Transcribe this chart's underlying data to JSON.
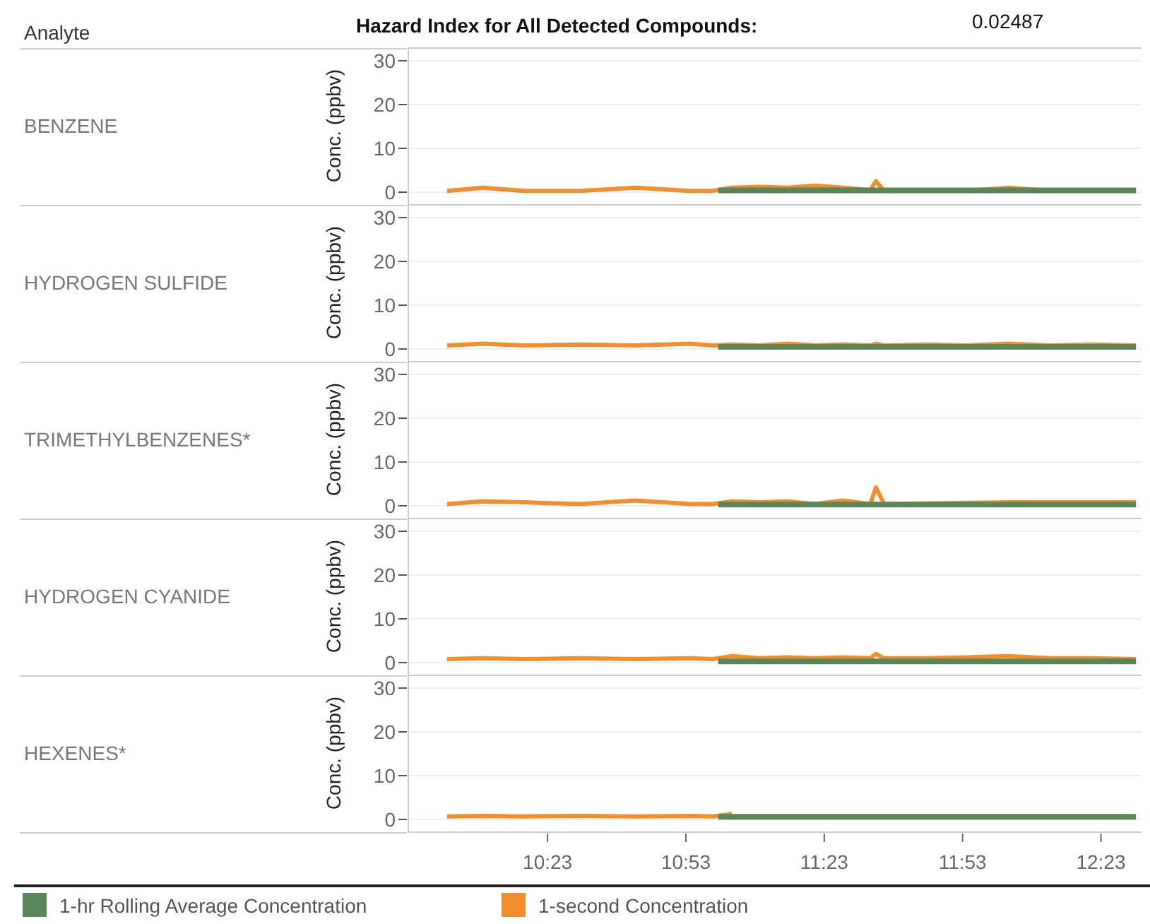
{
  "chart_data": [
    {
      "type": "line",
      "ylabel": "Conc. (ppbv)",
      "annotations": [
        "Analyte",
        "Hazard Index for All Detected Compounds:",
        "0.02487",
        "BENZENE"
      ],
      "xlim": [
        9.88,
        12.53
      ],
      "ylim": [
        -2.9,
        32.9
      ],
      "yticks": [
        0,
        10,
        20,
        30
      ],
      "grid": "y",
      "tick_labels": "y",
      "series": [
        {
          "color": "#f28e2b",
          "x": [
            10.02,
            10.15,
            10.3,
            10.5,
            10.7,
            10.9,
            10.98,
            11.05,
            11.15,
            11.25,
            11.35,
            11.45,
            11.55,
            11.57,
            11.6,
            11.75,
            11.9,
            12.05,
            12.2,
            12.35,
            12.51
          ],
          "values": [
            0.3,
            1,
            0.3,
            0.3,
            1,
            0.3,
            0.3,
            1,
            1.2,
            1,
            1.5,
            1,
            0.5,
            2.5,
            0.3,
            0.3,
            0.3,
            1,
            0.3,
            0.3,
            0.3
          ]
        },
        {
          "color": "#59875a",
          "x": [
            11.0,
            11.25,
            11.5,
            11.75,
            12.0,
            12.25,
            12.51
          ],
          "values": [
            0.4,
            0.4,
            0.4,
            0.4,
            0.4,
            0.4,
            0.4
          ]
        }
      ]
    },
    {
      "type": "line",
      "annotations": [
        "HYDROGEN SULFIDE"
      ],
      "ylabel": "Conc. (ppbv)",
      "xlim": [
        9.88,
        12.53
      ],
      "ylim": [
        -2.9,
        32.9
      ],
      "yticks": [
        0,
        10,
        20,
        30
      ],
      "grid": "y",
      "tick_labels": "y",
      "series": [
        {
          "color": "#f28e2b",
          "x": [
            10.02,
            10.15,
            10.3,
            10.5,
            10.7,
            10.9,
            10.98,
            11.05,
            11.15,
            11.25,
            11.35,
            11.45,
            11.55,
            11.57,
            11.6,
            11.75,
            11.9,
            12.05,
            12.2,
            12.35,
            12.51
          ],
          "values": [
            0.8,
            1.2,
            0.8,
            1,
            0.8,
            1.2,
            0.8,
            1,
            0.8,
            1.2,
            0.8,
            1,
            0.8,
            1.2,
            0.8,
            1,
            0.8,
            1.2,
            0.8,
            1,
            0.8
          ]
        },
        {
          "color": "#59875a",
          "x": [
            11.0,
            11.25,
            11.5,
            11.75,
            12.0,
            12.25,
            12.51
          ],
          "values": [
            0.5,
            0.5,
            0.5,
            0.5,
            0.5,
            0.5,
            0.5
          ]
        }
      ]
    },
    {
      "type": "line",
      "annotations": [
        "TRIMETHYLBENZENES*"
      ],
      "ylabel": "Conc. (ppbv)",
      "xlim": [
        9.88,
        12.53
      ],
      "ylim": [
        -2.9,
        32.9
      ],
      "yticks": [
        0,
        10,
        20,
        30
      ],
      "grid": "y",
      "tick_labels": "y",
      "series": [
        {
          "color": "#f28e2b",
          "x": [
            10.02,
            10.15,
            10.3,
            10.5,
            10.7,
            10.9,
            10.98,
            11.05,
            11.15,
            11.25,
            11.35,
            11.45,
            11.55,
            11.57,
            11.6,
            12.05,
            12.51
          ],
          "values": [
            0.4,
            1,
            0.8,
            0.4,
            1.2,
            0.4,
            0.4,
            1,
            0.8,
            1,
            0.4,
            1.2,
            0.4,
            4.2,
            0.4,
            0.8,
            0.8
          ]
        },
        {
          "color": "#59875a",
          "x": [
            11.0,
            11.25,
            11.5,
            11.75,
            12.0,
            12.25,
            12.51
          ],
          "values": [
            0.3,
            0.3,
            0.3,
            0.3,
            0.3,
            0.3,
            0.3
          ]
        }
      ]
    },
    {
      "type": "line",
      "annotations": [
        "HYDROGEN CYANIDE"
      ],
      "ylabel": "Conc. (ppbv)",
      "xlim": [
        9.88,
        12.53
      ],
      "ylim": [
        -2.9,
        32.9
      ],
      "yticks": [
        0,
        10,
        20,
        30
      ],
      "grid": "y",
      "tick_labels": "y",
      "series": [
        {
          "color": "#f28e2b",
          "x": [
            10.02,
            10.15,
            10.3,
            10.5,
            10.7,
            10.9,
            10.98,
            11.05,
            11.15,
            11.25,
            11.35,
            11.45,
            11.55,
            11.57,
            11.6,
            11.75,
            11.9,
            12.05,
            12.2,
            12.35,
            12.51
          ],
          "values": [
            0.8,
            1,
            0.8,
            1,
            0.8,
            1,
            0.8,
            1.5,
            1,
            1.2,
            1,
            1.2,
            1,
            2,
            1,
            1,
            1.2,
            1.5,
            1,
            1,
            0.8
          ]
        },
        {
          "color": "#59875a",
          "x": [
            11.0,
            11.25,
            11.5,
            11.75,
            12.0,
            12.25,
            12.51
          ],
          "values": [
            0.3,
            0.3,
            0.3,
            0.3,
            0.3,
            0.3,
            0.3
          ]
        }
      ]
    },
    {
      "type": "line",
      "annotations": [
        "HEXENES*"
      ],
      "ylabel": "Conc. (ppbv)",
      "xlim": [
        9.88,
        12.53
      ],
      "ylim": [
        -2.9,
        32.9
      ],
      "yticks": [
        0,
        10,
        20,
        30
      ],
      "xticks": [
        {
          "value": 10.3833,
          "label": "10:23"
        },
        {
          "value": 10.8833,
          "label": "10:53"
        },
        {
          "value": 11.3833,
          "label": "11:23"
        },
        {
          "value": 11.8833,
          "label": "11:53"
        },
        {
          "value": 12.3833,
          "label": "12:23"
        }
      ],
      "grid": "y",
      "legend": "bottom",
      "series": [
        {
          "name": "1-second Concentration",
          "color": "#f28e2b",
          "x": [
            10.02,
            10.15,
            10.3,
            10.5,
            10.7,
            10.9,
            10.98,
            11.05
          ],
          "values": [
            0.7,
            0.8,
            0.7,
            0.8,
            0.7,
            0.8,
            0.7,
            1.2
          ]
        },
        {
          "name": "1-hr Rolling Average Concentration",
          "color": "#59875a",
          "x": [
            11.0,
            11.25,
            11.5,
            11.75,
            12.0,
            12.25,
            12.51
          ],
          "values": [
            0.6,
            0.6,
            0.6,
            0.6,
            0.6,
            0.6,
            0.6
          ]
        }
      ]
    }
  ]
}
